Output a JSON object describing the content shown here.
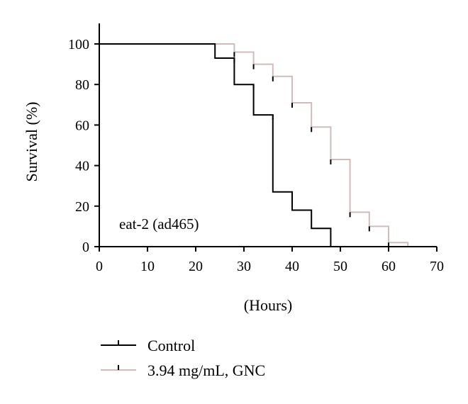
{
  "chart_data": {
    "type": "line",
    "title": "",
    "xlabel": "(Hours)",
    "ylabel": "Survival (%)",
    "xlim": [
      0,
      70
    ],
    "ylim": [
      0,
      100
    ],
    "xticks": [
      0,
      10,
      20,
      30,
      40,
      50,
      60,
      70
    ],
    "yticks": [
      0,
      20,
      40,
      60,
      80,
      100
    ],
    "grid": false,
    "legend_position": "bottom",
    "annotation": "eat-2 (ad465)",
    "series": [
      {
        "name": "Control",
        "color": "#000000",
        "x": [
          0,
          24,
          28,
          32,
          36,
          40,
          44,
          48
        ],
        "y": [
          100,
          93,
          80,
          65,
          27,
          18,
          9,
          0
        ],
        "censor": [
          {
            "x": 28,
            "y": 93
          },
          {
            "x": 32,
            "y": 80
          },
          {
            "x": 36,
            "y": 65
          }
        ]
      },
      {
        "name": "3.94 mg/mL, GNC",
        "color": "#cfbdbd",
        "x": [
          0,
          28,
          32,
          36,
          40,
          44,
          48,
          52,
          56,
          60,
          64
        ],
        "y": [
          100,
          96,
          90,
          84,
          71,
          59,
          43,
          17,
          10,
          2,
          0
        ],
        "censor": [
          {
            "x": 28,
            "y": 96
          },
          {
            "x": 32,
            "y": 90
          },
          {
            "x": 36,
            "y": 84
          },
          {
            "x": 40,
            "y": 71
          },
          {
            "x": 44,
            "y": 59
          },
          {
            "x": 48,
            "y": 43
          },
          {
            "x": 52,
            "y": 17
          },
          {
            "x": 56,
            "y": 10
          },
          {
            "x": 60,
            "y": 2
          }
        ]
      }
    ]
  }
}
